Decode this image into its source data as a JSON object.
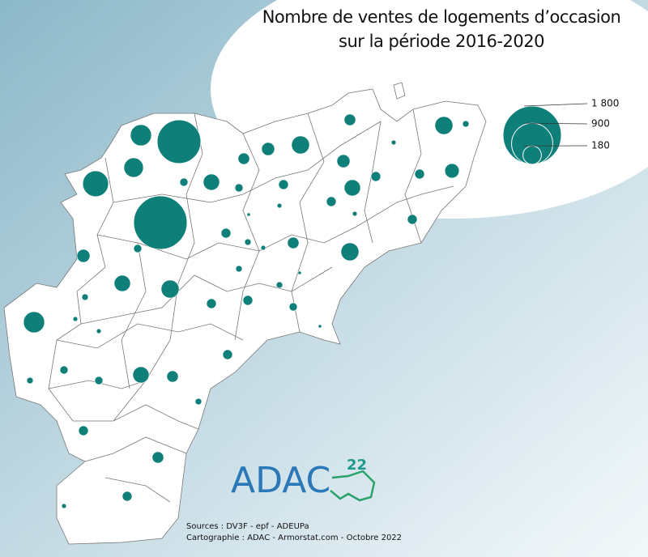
{
  "title": [
    "Nombre de ventes de logements d’occasion",
    "sur la période 2016-2020"
  ],
  "legend": [
    {
      "value": 1800,
      "label": "1 800"
    },
    {
      "value": 900,
      "label": "900"
    },
    {
      "value": 180,
      "label": "180"
    }
  ],
  "circles": [
    1500,
    1000,
    350,
    235,
    200,
    235,
    170,
    170,
    170,
    140,
    170,
    140,
    140,
    110,
    140,
    90,
    90,
    90,
    70,
    70,
    70,
    70,
    50,
    70,
    50,
    50,
    50,
    50,
    50,
    50,
    50,
    50,
    50,
    35,
    50,
    35,
    35,
    35,
    35,
    22,
    35,
    22,
    22,
    22,
    22,
    22,
    12,
    22,
    12,
    12,
    12,
    12,
    12,
    12,
    6,
    6,
    6
  ],
  "logo": {
    "name": "ADAC",
    "number": "22"
  },
  "sources": [
    "Sources : DV3F - epf - ADEUPa",
    "Cartographie : ADAC - Armorstat.com - Octobre 2022"
  ]
}
